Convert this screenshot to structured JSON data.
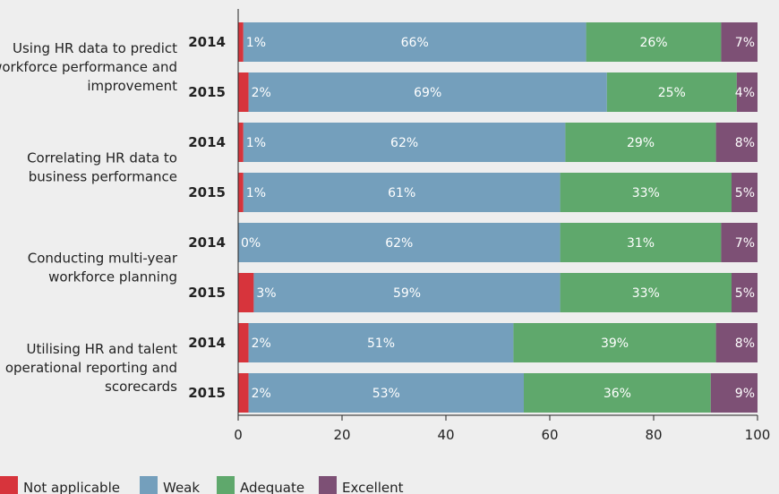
{
  "chart_data": {
    "type": "bar",
    "orientation": "horizontal",
    "stacked": true,
    "groups": [
      {
        "label": [
          "Using HR data  to predict",
          "workforce performance and",
          "improvement"
        ],
        "years": [
          "2014",
          "2015"
        ]
      },
      {
        "label": [
          "Correlating HR data to",
          "business performance"
        ],
        "years": [
          "2014",
          "2015"
        ]
      },
      {
        "label": [
          "Conducting multi-year",
          "workforce planning"
        ],
        "years": [
          "2014",
          "2015"
        ]
      },
      {
        "label": [
          "Utilising HR and talent",
          "operational reporting and",
          "scorecards"
        ],
        "years": [
          "2014",
          "2015"
        ]
      }
    ],
    "series": [
      {
        "name": "Not applicable",
        "color": "#d7343c",
        "values": [
          1,
          2,
          1,
          1,
          0,
          3,
          2,
          2
        ]
      },
      {
        "name": "Weak",
        "color": "#749fbc",
        "values": [
          66,
          69,
          62,
          61,
          62,
          59,
          51,
          53
        ]
      },
      {
        "name": "Adequate",
        "color": "#5fa86c",
        "values": [
          26,
          25,
          29,
          33,
          31,
          33,
          39,
          36
        ]
      },
      {
        "name": "Excellent",
        "color": "#7d5075",
        "values": [
          7,
          4,
          8,
          5,
          7,
          5,
          8,
          9
        ]
      }
    ],
    "labels": [
      [
        "1%",
        "66%",
        "26%",
        "7%"
      ],
      [
        "2%",
        "69%",
        "25%",
        "4%"
      ],
      [
        "1%",
        "62%",
        "29%",
        "8%"
      ],
      [
        "1%",
        "61%",
        "33%",
        "5%"
      ],
      [
        "0%",
        "62%",
        "31%",
        "7%"
      ],
      [
        "3%",
        "59%",
        "33%",
        "5%"
      ],
      [
        "2%",
        "51%",
        "39%",
        "8%"
      ],
      [
        "2%",
        "53%",
        "36%",
        "9%"
      ]
    ],
    "xlim": [
      0,
      100
    ],
    "xticks": [
      "0",
      "20",
      "40",
      "60",
      "80",
      "100"
    ],
    "grid": false,
    "legend_position": "bottom-left"
  }
}
